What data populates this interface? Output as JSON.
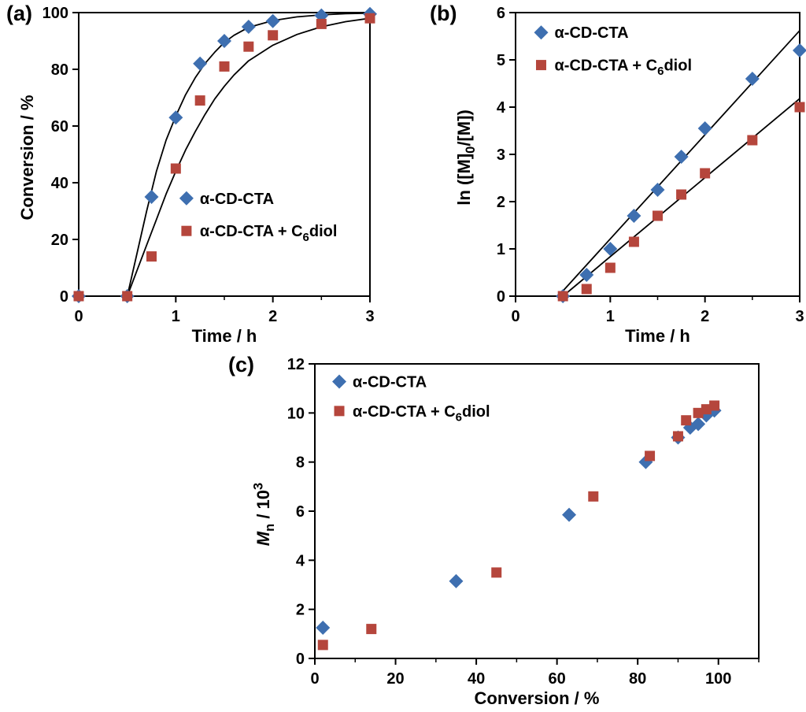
{
  "background": "#ffffff",
  "colors": {
    "series_blue": "#3e6fb0",
    "series_red": "#b5463c",
    "axis": "#000000",
    "fit_line": "#000000"
  },
  "chart_data": [
    {
      "id": "a",
      "type": "scatter",
      "panel_label": "(a)",
      "xlabel": "Time / h",
      "ylabel": "Conversion / %",
      "xlabel_segments": [
        {
          "t": "Time / h"
        }
      ],
      "ylabel_segments": [
        {
          "t": "Conversion / %"
        }
      ],
      "xlim": [
        0,
        3
      ],
      "ylim": [
        0,
        100
      ],
      "xticks": [
        0,
        1,
        2,
        3
      ],
      "yticks": [
        0,
        20,
        40,
        60,
        80,
        100
      ],
      "x_minor_step": 0.5,
      "grid": false,
      "legend": {
        "position": "inside-middle-right",
        "fx": 0.37,
        "fy": 0.655,
        "row_gap_f": 0.115
      },
      "series": [
        {
          "name": "α-CD-CTA",
          "label_segments": [
            {
              "t": "α-CD-CTA"
            }
          ],
          "marker": "diamond",
          "color": "#3e6fb0",
          "points": [
            [
              0,
              0
            ],
            [
              0.5,
              0
            ],
            [
              0.75,
              35
            ],
            [
              1,
              63
            ],
            [
              1.25,
              82
            ],
            [
              1.5,
              90
            ],
            [
              1.75,
              95
            ],
            [
              2,
              97
            ],
            [
              2.5,
              99
            ],
            [
              3,
              99.5
            ]
          ]
        },
        {
          "name": "α-CD-CTA + C6diol",
          "label_segments": [
            {
              "t": "α-CD-CTA + C"
            },
            {
              "t": "6",
              "sub": true
            },
            {
              "t": "diol"
            }
          ],
          "marker": "square",
          "color": "#b5463c",
          "points": [
            [
              0,
              0
            ],
            [
              0.5,
              0
            ],
            [
              0.75,
              14
            ],
            [
              1,
              45
            ],
            [
              1.25,
              69
            ],
            [
              1.5,
              81
            ],
            [
              1.75,
              88
            ],
            [
              2,
              92
            ],
            [
              2.5,
              96
            ],
            [
              3,
              98
            ]
          ]
        }
      ],
      "fit_curves": [
        {
          "color": "#000000",
          "points": [
            [
              0.5,
              0
            ],
            [
              0.6,
              15
            ],
            [
              0.7,
              30
            ],
            [
              0.8,
              44
            ],
            [
              0.9,
              55
            ],
            [
              1,
              63.5
            ],
            [
              1.1,
              71
            ],
            [
              1.2,
              77
            ],
            [
              1.3,
              82
            ],
            [
              1.4,
              86
            ],
            [
              1.5,
              89.5
            ],
            [
              1.6,
              92
            ],
            [
              1.75,
              94.8
            ],
            [
              2,
              97.2
            ],
            [
              2.25,
              98.5
            ],
            [
              2.5,
              99.2
            ],
            [
              2.75,
              99.6
            ],
            [
              3,
              99.8
            ]
          ]
        },
        {
          "color": "#000000",
          "points": [
            [
              0.5,
              0
            ],
            [
              0.6,
              9
            ],
            [
              0.7,
              18
            ],
            [
              0.8,
              27
            ],
            [
              0.9,
              36
            ],
            [
              1,
              44
            ],
            [
              1.1,
              51.5
            ],
            [
              1.2,
              58
            ],
            [
              1.3,
              64
            ],
            [
              1.4,
              69.5
            ],
            [
              1.5,
              74
            ],
            [
              1.6,
              78
            ],
            [
              1.75,
              83
            ],
            [
              2,
              88.5
            ],
            [
              2.25,
              92.3
            ],
            [
              2.5,
              95
            ],
            [
              2.75,
              96.8
            ],
            [
              3,
              98
            ]
          ]
        }
      ]
    },
    {
      "id": "b",
      "type": "scatter",
      "panel_label": "(b)",
      "xlabel": "Time / h",
      "ylabel": "ln ([M]0/[M])",
      "xlabel_segments": [
        {
          "t": "Time / h"
        }
      ],
      "ylabel_segments": [
        {
          "t": "ln ([M]"
        },
        {
          "t": "0",
          "sub": true
        },
        {
          "t": "/[M])"
        }
      ],
      "xlim": [
        0,
        3
      ],
      "ylim": [
        0,
        6
      ],
      "xticks": [
        0,
        1,
        2,
        3
      ],
      "yticks": [
        0,
        1,
        2,
        3,
        4,
        5,
        6
      ],
      "x_minor_step": 0.5,
      "grid": false,
      "legend": {
        "position": "inside-top-left",
        "fx": 0.09,
        "fy": 0.07,
        "row_gap_f": 0.115
      },
      "series": [
        {
          "name": "α-CD-CTA",
          "label_segments": [
            {
              "t": "α-CD-CTA"
            }
          ],
          "marker": "diamond",
          "color": "#3e6fb0",
          "points": [
            [
              0.5,
              0
            ],
            [
              0.75,
              0.45
            ],
            [
              1,
              1.0
            ],
            [
              1.25,
              1.7
            ],
            [
              1.5,
              2.25
            ],
            [
              1.75,
              2.95
            ],
            [
              2,
              3.55
            ],
            [
              2.5,
              4.6
            ],
            [
              3,
              5.2
            ]
          ]
        },
        {
          "name": "α-CD-CTA + C6diol",
          "label_segments": [
            {
              "t": "α-CD-CTA + C"
            },
            {
              "t": "6",
              "sub": true
            },
            {
              "t": "diol"
            }
          ],
          "marker": "square",
          "color": "#b5463c",
          "points": [
            [
              0.5,
              0
            ],
            [
              0.75,
              0.15
            ],
            [
              1,
              0.6
            ],
            [
              1.25,
              1.15
            ],
            [
              1.5,
              1.7
            ],
            [
              1.75,
              2.15
            ],
            [
              2,
              2.6
            ],
            [
              2.5,
              3.3
            ],
            [
              3,
              4.0
            ]
          ]
        }
      ],
      "fit_curves": [
        {
          "color": "#000000",
          "points": [
            [
              0.45,
              0
            ],
            [
              3,
              5.62
            ]
          ]
        },
        {
          "color": "#000000",
          "points": [
            [
              0.5,
              0
            ],
            [
              3,
              4.18
            ]
          ]
        }
      ]
    },
    {
      "id": "c",
      "type": "scatter",
      "panel_label": "(c)",
      "xlabel": "Conversion / %",
      "ylabel": "Mn / 10^3",
      "xlabel_segments": [
        {
          "t": "Conversion / %"
        }
      ],
      "ylabel_segments": [
        {
          "t": "M",
          "italic": true
        },
        {
          "t": "n",
          "sub": true
        },
        {
          "t": " / 10"
        },
        {
          "t": "3",
          "sup": true
        }
      ],
      "xlim": [
        0,
        110
      ],
      "ylim": [
        0,
        12
      ],
      "xticks": [
        0,
        20,
        40,
        60,
        80,
        100
      ],
      "yticks": [
        0,
        2,
        4,
        6,
        8,
        10,
        12
      ],
      "x_minor_step": 10,
      "grid": false,
      "legend": {
        "position": "inside-top-left",
        "fx": 0.055,
        "fy": 0.06,
        "row_gap_f": 0.1
      },
      "series": [
        {
          "name": "α-CD-CTA",
          "label_segments": [
            {
              "t": "α-CD-CTA"
            }
          ],
          "marker": "diamond",
          "color": "#3e6fb0",
          "points": [
            [
              2,
              1.25
            ],
            [
              35,
              3.15
            ],
            [
              63,
              5.85
            ],
            [
              82,
              8.0
            ],
            [
              90,
              9.0
            ],
            [
              93,
              9.4
            ],
            [
              95,
              9.55
            ],
            [
              97,
              9.9
            ],
            [
              99,
              10.1
            ]
          ]
        },
        {
          "name": "α-CD-CTA + C6diol",
          "label_segments": [
            {
              "t": "α-CD-CTA + C"
            },
            {
              "t": "6",
              "sub": true
            },
            {
              "t": "diol"
            }
          ],
          "marker": "square",
          "color": "#b5463c",
          "points": [
            [
              2,
              0.55
            ],
            [
              14,
              1.2
            ],
            [
              45,
              3.5
            ],
            [
              69,
              6.6
            ],
            [
              83,
              8.25
            ],
            [
              90,
              9.05
            ],
            [
              92,
              9.7
            ],
            [
              95,
              10.0
            ],
            [
              97,
              10.15
            ],
            [
              99,
              10.3
            ]
          ]
        }
      ],
      "fit_curves": []
    }
  ]
}
